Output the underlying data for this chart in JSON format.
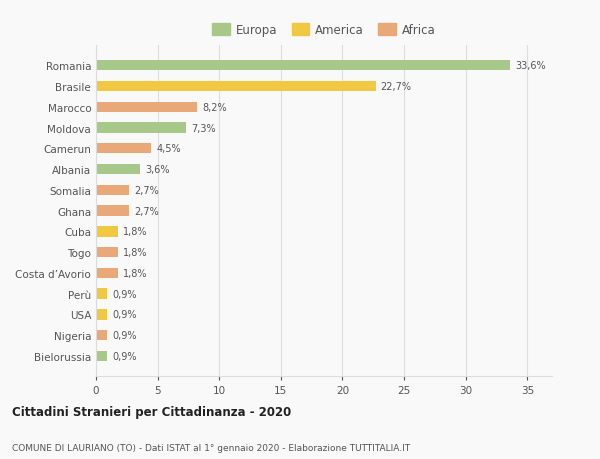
{
  "categories": [
    "Bielorussia",
    "Nigeria",
    "USA",
    "Perù",
    "Costa d’Avorio",
    "Togo",
    "Cuba",
    "Ghana",
    "Somalia",
    "Albania",
    "Camerun",
    "Moldova",
    "Marocco",
    "Brasile",
    "Romania"
  ],
  "values": [
    0.9,
    0.9,
    0.9,
    0.9,
    1.8,
    1.8,
    1.8,
    2.7,
    2.7,
    3.6,
    4.5,
    7.3,
    8.2,
    22.7,
    33.6
  ],
  "labels": [
    "0,9%",
    "0,9%",
    "0,9%",
    "0,9%",
    "1,8%",
    "1,8%",
    "1,8%",
    "2,7%",
    "2,7%",
    "3,6%",
    "4,5%",
    "7,3%",
    "8,2%",
    "22,7%",
    "33,6%"
  ],
  "colors": [
    "#a8c88a",
    "#e8a878",
    "#f0c842",
    "#f0c842",
    "#e8a878",
    "#e8a878",
    "#f0c842",
    "#e8a878",
    "#e8a878",
    "#a8c88a",
    "#e8a878",
    "#a8c88a",
    "#e8a878",
    "#f0c842",
    "#a8c88a"
  ],
  "continent": [
    "Europa",
    "Africa",
    "America",
    "America",
    "Africa",
    "Africa",
    "America",
    "Africa",
    "Africa",
    "Europa",
    "Africa",
    "Europa",
    "Africa",
    "America",
    "Europa"
  ],
  "legend_colors": {
    "Europa": "#a8c88a",
    "America": "#f0c842",
    "Africa": "#e8a878"
  },
  "title": "Cittadini Stranieri per Cittadinanza - 2020",
  "subtitle": "COMUNE DI LAURIANO (TO) - Dati ISTAT al 1° gennaio 2020 - Elaborazione TUTTITALIA.IT",
  "xlim": [
    0,
    37
  ],
  "xticks": [
    0,
    5,
    10,
    15,
    20,
    25,
    30,
    35
  ],
  "bg_color": "#f9f9f9",
  "grid_color": "#dddddd",
  "bar_height": 0.5
}
